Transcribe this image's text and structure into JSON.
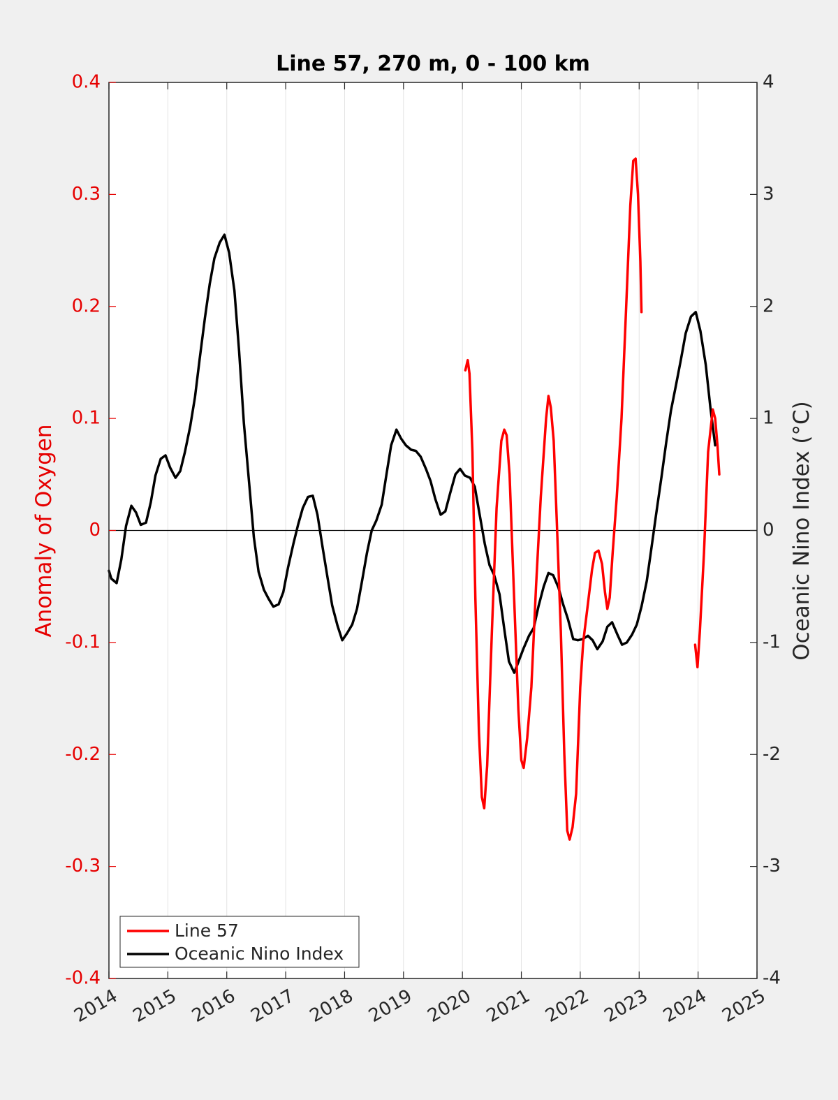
{
  "chart_data": {
    "type": "line",
    "title": "Line 57, 270 m, 0 - 100 km",
    "xlabel": "",
    "ylabel_left": "Anomaly of Oxygen",
    "ylabel_right": "Oceanic Nino Index (°C)",
    "xlim": [
      2014,
      2025
    ],
    "ylim_left": [
      -0.4,
      0.4
    ],
    "ylim_right": [
      -4,
      4
    ],
    "x_ticks": [
      "2014",
      "2015",
      "2016",
      "2017",
      "2018",
      "2019",
      "2020",
      "2021",
      "2022",
      "2023",
      "2024",
      "2025"
    ],
    "y_ticks_left": [
      "0.4",
      "0.3",
      "0.2",
      "0.1",
      "0",
      "-0.1",
      "-0.2",
      "-0.3",
      "-0.4"
    ],
    "y_ticks_right": [
      "4",
      "3",
      "2",
      "1",
      "0",
      "-1",
      "-2",
      "-3",
      "-4"
    ],
    "colors": {
      "left_axis": "#e60000",
      "series_line57": "#ff0000",
      "series_oni": "#000000"
    },
    "legend_position": "bottom-left",
    "series": [
      {
        "name": "Line 57",
        "axis": "left",
        "segments": [
          [
            [
              2020.05,
              0.143
            ],
            [
              2020.09,
              0.152
            ],
            [
              2020.12,
              0.14
            ],
            [
              2020.17,
              0.07
            ],
            [
              2020.22,
              -0.06
            ],
            [
              2020.28,
              -0.18
            ],
            [
              2020.33,
              -0.238
            ],
            [
              2020.37,
              -0.248
            ],
            [
              2020.42,
              -0.21
            ],
            [
              2020.5,
              -0.09
            ],
            [
              2020.58,
              0.02
            ],
            [
              2020.66,
              0.08
            ],
            [
              2020.71,
              0.09
            ],
            [
              2020.75,
              0.085
            ],
            [
              2020.8,
              0.05
            ],
            [
              2020.87,
              -0.05
            ],
            [
              2020.95,
              -0.16
            ],
            [
              2021.0,
              -0.205
            ],
            [
              2021.04,
              -0.212
            ],
            [
              2021.1,
              -0.185
            ],
            [
              2021.17,
              -0.14
            ],
            [
              2021.25,
              -0.05
            ],
            [
              2021.33,
              0.03
            ],
            [
              2021.42,
              0.1
            ],
            [
              2021.46,
              0.12
            ],
            [
              2021.5,
              0.11
            ],
            [
              2021.55,
              0.08
            ],
            [
              2021.6,
              0.01
            ],
            [
              2021.67,
              -0.09
            ],
            [
              2021.73,
              -0.2
            ],
            [
              2021.78,
              -0.268
            ],
            [
              2021.82,
              -0.276
            ],
            [
              2021.87,
              -0.265
            ],
            [
              2021.93,
              -0.235
            ],
            [
              2022.0,
              -0.14
            ],
            [
              2022.05,
              -0.1
            ],
            [
              2022.12,
              -0.07
            ],
            [
              2022.2,
              -0.035
            ],
            [
              2022.25,
              -0.02
            ],
            [
              2022.31,
              -0.018
            ],
            [
              2022.37,
              -0.03
            ],
            [
              2022.42,
              -0.055
            ],
            [
              2022.46,
              -0.07
            ],
            [
              2022.5,
              -0.06
            ],
            [
              2022.55,
              -0.02
            ],
            [
              2022.62,
              0.03
            ],
            [
              2022.7,
              0.1
            ],
            [
              2022.78,
              0.2
            ],
            [
              2022.85,
              0.29
            ],
            [
              2022.9,
              0.33
            ],
            [
              2022.94,
              0.332
            ],
            [
              2022.98,
              0.3
            ],
            [
              2023.02,
              0.24
            ],
            [
              2023.04,
              0.195
            ]
          ],
          [
            [
              2023.95,
              -0.102
            ],
            [
              2023.99,
              -0.122
            ],
            [
              2024.03,
              -0.09
            ],
            [
              2024.1,
              -0.02
            ],
            [
              2024.17,
              0.07
            ],
            [
              2024.25,
              0.108
            ],
            [
              2024.29,
              0.1
            ],
            [
              2024.33,
              0.075
            ],
            [
              2024.36,
              0.05
            ]
          ]
        ]
      },
      {
        "name": "Oceanic Nino Index",
        "axis": "right",
        "points": [
          [
            2014.0,
            -0.36
          ],
          [
            2014.04,
            -0.43
          ],
          [
            2014.13,
            -0.47
          ],
          [
            2014.21,
            -0.26
          ],
          [
            2014.29,
            0.04
          ],
          [
            2014.38,
            0.22
          ],
          [
            2014.46,
            0.16
          ],
          [
            2014.54,
            0.05
          ],
          [
            2014.63,
            0.07
          ],
          [
            2014.71,
            0.25
          ],
          [
            2014.79,
            0.49
          ],
          [
            2014.88,
            0.64
          ],
          [
            2014.96,
            0.67
          ],
          [
            2015.04,
            0.56
          ],
          [
            2015.13,
            0.47
          ],
          [
            2015.21,
            0.53
          ],
          [
            2015.29,
            0.7
          ],
          [
            2015.38,
            0.93
          ],
          [
            2015.46,
            1.19
          ],
          [
            2015.54,
            1.53
          ],
          [
            2015.63,
            1.9
          ],
          [
            2015.71,
            2.2
          ],
          [
            2015.79,
            2.43
          ],
          [
            2015.88,
            2.57
          ],
          [
            2015.96,
            2.64
          ],
          [
            2016.04,
            2.48
          ],
          [
            2016.13,
            2.14
          ],
          [
            2016.21,
            1.6
          ],
          [
            2016.29,
            0.96
          ],
          [
            2016.38,
            0.42
          ],
          [
            2016.46,
            -0.06
          ],
          [
            2016.54,
            -0.37
          ],
          [
            2016.63,
            -0.53
          ],
          [
            2016.71,
            -0.61
          ],
          [
            2016.79,
            -0.68
          ],
          [
            2016.88,
            -0.66
          ],
          [
            2016.96,
            -0.55
          ],
          [
            2017.04,
            -0.33
          ],
          [
            2017.13,
            -0.12
          ],
          [
            2017.21,
            0.05
          ],
          [
            2017.29,
            0.2
          ],
          [
            2017.38,
            0.3
          ],
          [
            2017.46,
            0.31
          ],
          [
            2017.54,
            0.14
          ],
          [
            2017.63,
            -0.16
          ],
          [
            2017.71,
            -0.42
          ],
          [
            2017.79,
            -0.67
          ],
          [
            2017.88,
            -0.85
          ],
          [
            2017.96,
            -0.98
          ],
          [
            2018.04,
            -0.92
          ],
          [
            2018.13,
            -0.84
          ],
          [
            2018.21,
            -0.7
          ],
          [
            2018.29,
            -0.47
          ],
          [
            2018.38,
            -0.2
          ],
          [
            2018.46,
            0.0
          ],
          [
            2018.54,
            0.09
          ],
          [
            2018.63,
            0.23
          ],
          [
            2018.71,
            0.5
          ],
          [
            2018.79,
            0.76
          ],
          [
            2018.88,
            0.9
          ],
          [
            2018.96,
            0.82
          ],
          [
            2019.04,
            0.76
          ],
          [
            2019.13,
            0.72
          ],
          [
            2019.21,
            0.71
          ],
          [
            2019.29,
            0.66
          ],
          [
            2019.38,
            0.55
          ],
          [
            2019.46,
            0.44
          ],
          [
            2019.54,
            0.28
          ],
          [
            2019.63,
            0.14
          ],
          [
            2019.71,
            0.17
          ],
          [
            2019.79,
            0.33
          ],
          [
            2019.88,
            0.5
          ],
          [
            2019.96,
            0.55
          ],
          [
            2020.04,
            0.49
          ],
          [
            2020.13,
            0.47
          ],
          [
            2020.21,
            0.39
          ],
          [
            2020.29,
            0.15
          ],
          [
            2020.38,
            -0.12
          ],
          [
            2020.46,
            -0.31
          ],
          [
            2020.54,
            -0.4
          ],
          [
            2020.63,
            -0.57
          ],
          [
            2020.71,
            -0.88
          ],
          [
            2020.79,
            -1.17
          ],
          [
            2020.88,
            -1.27
          ],
          [
            2020.96,
            -1.16
          ],
          [
            2021.04,
            -1.05
          ],
          [
            2021.13,
            -0.94
          ],
          [
            2021.21,
            -0.87
          ],
          [
            2021.29,
            -0.68
          ],
          [
            2021.38,
            -0.5
          ],
          [
            2021.46,
            -0.38
          ],
          [
            2021.54,
            -0.4
          ],
          [
            2021.63,
            -0.51
          ],
          [
            2021.71,
            -0.66
          ],
          [
            2021.79,
            -0.79
          ],
          [
            2021.88,
            -0.97
          ],
          [
            2021.96,
            -0.98
          ],
          [
            2022.04,
            -0.97
          ],
          [
            2022.13,
            -0.94
          ],
          [
            2022.21,
            -0.98
          ],
          [
            2022.29,
            -1.06
          ],
          [
            2022.38,
            -0.99
          ],
          [
            2022.46,
            -0.86
          ],
          [
            2022.54,
            -0.82
          ],
          [
            2022.63,
            -0.93
          ],
          [
            2022.71,
            -1.02
          ],
          [
            2022.79,
            -1.0
          ],
          [
            2022.88,
            -0.93
          ],
          [
            2022.96,
            -0.84
          ],
          [
            2023.04,
            -0.68
          ],
          [
            2023.13,
            -0.45
          ],
          [
            2023.21,
            -0.15
          ],
          [
            2023.29,
            0.15
          ],
          [
            2023.38,
            0.48
          ],
          [
            2023.46,
            0.79
          ],
          [
            2023.54,
            1.07
          ],
          [
            2023.63,
            1.31
          ],
          [
            2023.71,
            1.53
          ],
          [
            2023.79,
            1.76
          ],
          [
            2023.88,
            1.91
          ],
          [
            2023.96,
            1.95
          ],
          [
            2024.04,
            1.78
          ],
          [
            2024.13,
            1.48
          ],
          [
            2024.21,
            1.09
          ],
          [
            2024.29,
            0.76
          ]
        ]
      }
    ]
  }
}
